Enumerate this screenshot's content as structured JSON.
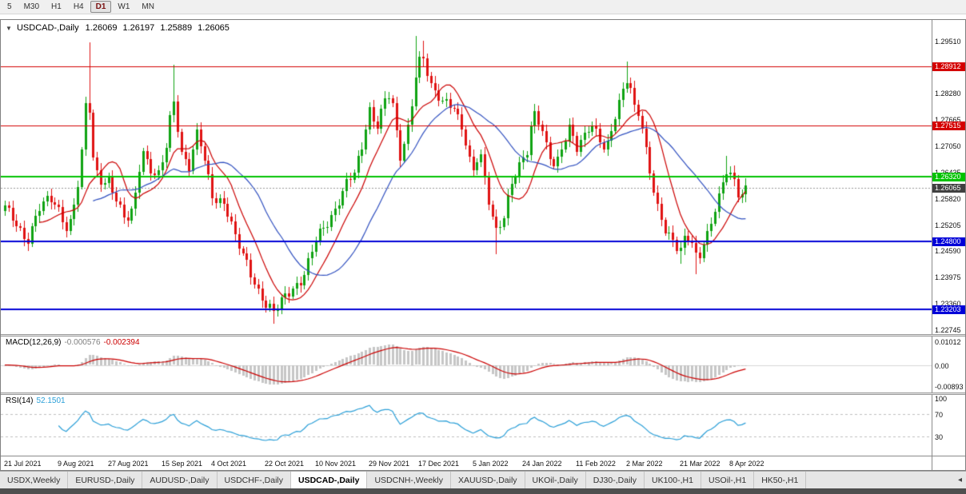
{
  "toolbar": {
    "timeframes": [
      {
        "label": "5",
        "active": false
      },
      {
        "label": "M30",
        "active": false
      },
      {
        "label": "H1",
        "active": false
      },
      {
        "label": "H4",
        "active": false
      },
      {
        "label": "D1",
        "active": true
      },
      {
        "label": "W1",
        "active": false
      },
      {
        "label": "MN",
        "active": false
      }
    ]
  },
  "chart": {
    "collapse_icon": "▼",
    "title_symbol": "USDCAD-,Daily",
    "ohlc": {
      "open": "1.26069",
      "high": "1.26197",
      "low": "1.25889",
      "close": "1.26065"
    }
  },
  "macd": {
    "name": "MACD(12,26,9)",
    "value1": "-0.000576",
    "value2": "-0.002394",
    "axis_labels": [
      "0.01012",
      "0.00",
      "-0.00893"
    ]
  },
  "rsi": {
    "name": "RSI(14)",
    "value": "52.1501",
    "axis_labels": [
      "100",
      "70",
      "30"
    ]
  },
  "x_axis": {
    "labels": [
      "21 Jul 2021",
      "9 Aug 2021",
      "27 Aug 2021",
      "15 Sep 2021",
      "4 Oct 2021",
      "22 Oct 2021",
      "10 Nov 2021",
      "29 Nov 2021",
      "17 Dec 2021",
      "5 Jan 2022",
      "24 Jan 2022",
      "11 Feb 2022",
      "2 Mar 2022",
      "21 Mar 2022",
      "8 Apr 2022"
    ]
  },
  "tabs": {
    "selected_index": 4,
    "scroll_left_icon": "◂",
    "items": [
      "USDX,Weekly",
      "EURUSD-,Daily",
      "AUDUSD-,Daily",
      "USDCHF-,Daily",
      "USDCAD-,Daily",
      "USDCNH-,Weekly",
      "XAUUSD-,Daily",
      "UKOil-,Daily",
      "DJ30-,Daily",
      "UK100-,H1",
      "USOil-,H1",
      "HK50-,H1"
    ]
  },
  "chart_data": {
    "type": "candlestick",
    "symbol": "USDCAD",
    "timeframe": "Daily",
    "candle_count": 194,
    "x_start": 4,
    "candle_spacing": 4.8,
    "date_tick_step": 13.5,
    "main": {
      "y_max": 1.2999,
      "y_min": 1.2263,
      "y_ticks": [
        "1.29510",
        "1.28895",
        "1.28280",
        "1.27665",
        "1.27050",
        "1.26435",
        "1.25820",
        "1.25205",
        "1.24590",
        "1.23975",
        "1.23360",
        "1.22745"
      ]
    },
    "current_price": 1.26065,
    "current_price_label": "1.26065",
    "current_price_tag_color": "#404040",
    "levels": [
      {
        "price": 1.28912,
        "color": "#d40000",
        "width": 1,
        "label": "1.28912"
      },
      {
        "price": 1.27515,
        "color": "#d40000",
        "width": 1,
        "label": "1.27515"
      },
      {
        "price": 1.2632,
        "color": "#00c300",
        "width": 2,
        "label": "1.26320"
      },
      {
        "price": 1.248,
        "color": "#0000d8",
        "width": 2,
        "label": "1.24800"
      },
      {
        "price": 1.23203,
        "color": "#0000d8",
        "width": 2,
        "label": "1.23203"
      }
    ],
    "colors": {
      "up": "#0fa312",
      "down": "#e01212",
      "ma_fast": "#cc0000",
      "ma_slow": "#3050c0",
      "macd_hist": "#c6c6c6",
      "macd_signal": "#cc0000",
      "rsi_line": "#2a9fd8",
      "dashed": "#c0c0c0",
      "current_line": "#999999"
    },
    "ma_fast_period": 10,
    "ma_slow_period": 24,
    "noise": {
      "a1": 0.0009,
      "f1": 1.93,
      "a2": 0.0005,
      "f2": 0.53
    },
    "macd_scale": {
      "top": 0.0122,
      "bottom": -0.0118
    },
    "rsi_pad": 4,
    "price_anchors": [
      [
        0.0,
        1.256
      ],
      [
        0.015,
        1.2525
      ],
      [
        0.03,
        1.248
      ],
      [
        0.045,
        1.2555
      ],
      [
        0.06,
        1.258
      ],
      [
        0.072,
        1.2555
      ],
      [
        0.085,
        1.2505
      ],
      [
        0.095,
        1.2585
      ],
      [
        0.102,
        1.265
      ],
      [
        0.108,
        1.279
      ],
      [
        0.112,
        1.283
      ],
      [
        0.12,
        1.265
      ],
      [
        0.131,
        1.2615
      ],
      [
        0.14,
        1.2625
      ],
      [
        0.15,
        1.2585
      ],
      [
        0.163,
        1.253
      ],
      [
        0.173,
        1.255
      ],
      [
        0.185,
        1.269
      ],
      [
        0.196,
        1.265
      ],
      [
        0.206,
        1.2635
      ],
      [
        0.218,
        1.271
      ],
      [
        0.227,
        1.282
      ],
      [
        0.238,
        1.268
      ],
      [
        0.249,
        1.265
      ],
      [
        0.26,
        1.2745
      ],
      [
        0.269,
        1.268
      ],
      [
        0.281,
        1.258
      ],
      [
        0.296,
        1.2565
      ],
      [
        0.311,
        1.249
      ],
      [
        0.326,
        1.2435
      ],
      [
        0.34,
        1.237
      ],
      [
        0.352,
        1.233
      ],
      [
        0.364,
        1.231
      ],
      [
        0.376,
        1.235
      ],
      [
        0.389,
        1.2372
      ],
      [
        0.401,
        1.2392
      ],
      [
        0.413,
        1.245
      ],
      [
        0.421,
        1.249
      ],
      [
        0.433,
        1.2512
      ],
      [
        0.446,
        1.2556
      ],
      [
        0.46,
        1.262
      ],
      [
        0.472,
        1.2645
      ],
      [
        0.483,
        1.27
      ],
      [
        0.491,
        1.2788
      ],
      [
        0.501,
        1.2742
      ],
      [
        0.511,
        1.281
      ],
      [
        0.521,
        1.2838
      ],
      [
        0.533,
        1.2672
      ],
      [
        0.546,
        1.2752
      ],
      [
        0.556,
        1.2888
      ],
      [
        0.563,
        1.2918
      ],
      [
        0.576,
        1.2845
      ],
      [
        0.59,
        1.2812
      ],
      [
        0.606,
        1.279
      ],
      [
        0.619,
        1.273
      ],
      [
        0.631,
        1.2642
      ],
      [
        0.641,
        1.27
      ],
      [
        0.652,
        1.2582
      ],
      [
        0.663,
        1.25
      ],
      [
        0.673,
        1.2528
      ],
      [
        0.683,
        1.2612
      ],
      [
        0.695,
        1.2665
      ],
      [
        0.706,
        1.27
      ],
      [
        0.713,
        1.2788
      ],
      [
        0.723,
        1.275
      ],
      [
        0.733,
        1.2682
      ],
      [
        0.743,
        1.2652
      ],
      [
        0.753,
        1.271
      ],
      [
        0.763,
        1.2758
      ],
      [
        0.771,
        1.27
      ],
      [
        0.781,
        1.2722
      ],
      [
        0.791,
        1.2752
      ],
      [
        0.801,
        1.2722
      ],
      [
        0.811,
        1.2692
      ],
      [
        0.821,
        1.2762
      ],
      [
        0.833,
        1.2832
      ],
      [
        0.841,
        1.2868
      ],
      [
        0.849,
        1.2792
      ],
      [
        0.857,
        1.2772
      ],
      [
        0.865,
        1.2692
      ],
      [
        0.873,
        1.2622
      ],
      [
        0.881,
        1.2562
      ],
      [
        0.891,
        1.2512
      ],
      [
        0.901,
        1.2482
      ],
      [
        0.911,
        1.2452
      ],
      [
        0.919,
        1.2492
      ],
      [
        0.927,
        1.2478
      ],
      [
        0.935,
        1.2432
      ],
      [
        0.943,
        1.2482
      ],
      [
        0.951,
        1.2512
      ],
      [
        0.959,
        1.2562
      ],
      [
        0.967,
        1.2602
      ],
      [
        0.975,
        1.2648
      ],
      [
        0.983,
        1.2622
      ],
      [
        0.991,
        1.2582
      ],
      [
        1.0,
        1.2606
      ]
    ],
    "spikes": [
      {
        "t": 0.112,
        "high": 1.2947
      },
      {
        "t": 0.227,
        "high": 1.2895
      },
      {
        "t": 0.364,
        "low": 1.2288
      },
      {
        "t": 0.556,
        "high": 1.2962
      },
      {
        "t": 0.563,
        "high": 1.295
      },
      {
        "t": 0.663,
        "low": 1.245
      },
      {
        "t": 0.841,
        "high": 1.2901
      },
      {
        "t": 0.911,
        "low": 1.2428
      },
      {
        "t": 0.935,
        "low": 1.2403
      },
      {
        "t": 0.975,
        "high": 1.268
      }
    ]
  }
}
